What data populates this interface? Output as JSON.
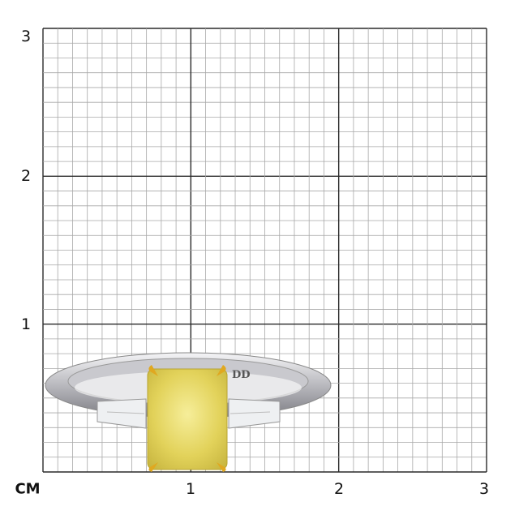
{
  "scale": {
    "unit_label": "CM",
    "x_ticks": [
      "1",
      "2",
      "3"
    ],
    "y_ticks": [
      "3",
      "2",
      "1"
    ],
    "range_cm": [
      0,
      3
    ],
    "minor_divisions_per_cm": 10
  },
  "product": {
    "engraving": "DD",
    "stone_color": "#e8d860",
    "prong_color": "#e0a820",
    "metal_color": "#d8d8dc"
  }
}
